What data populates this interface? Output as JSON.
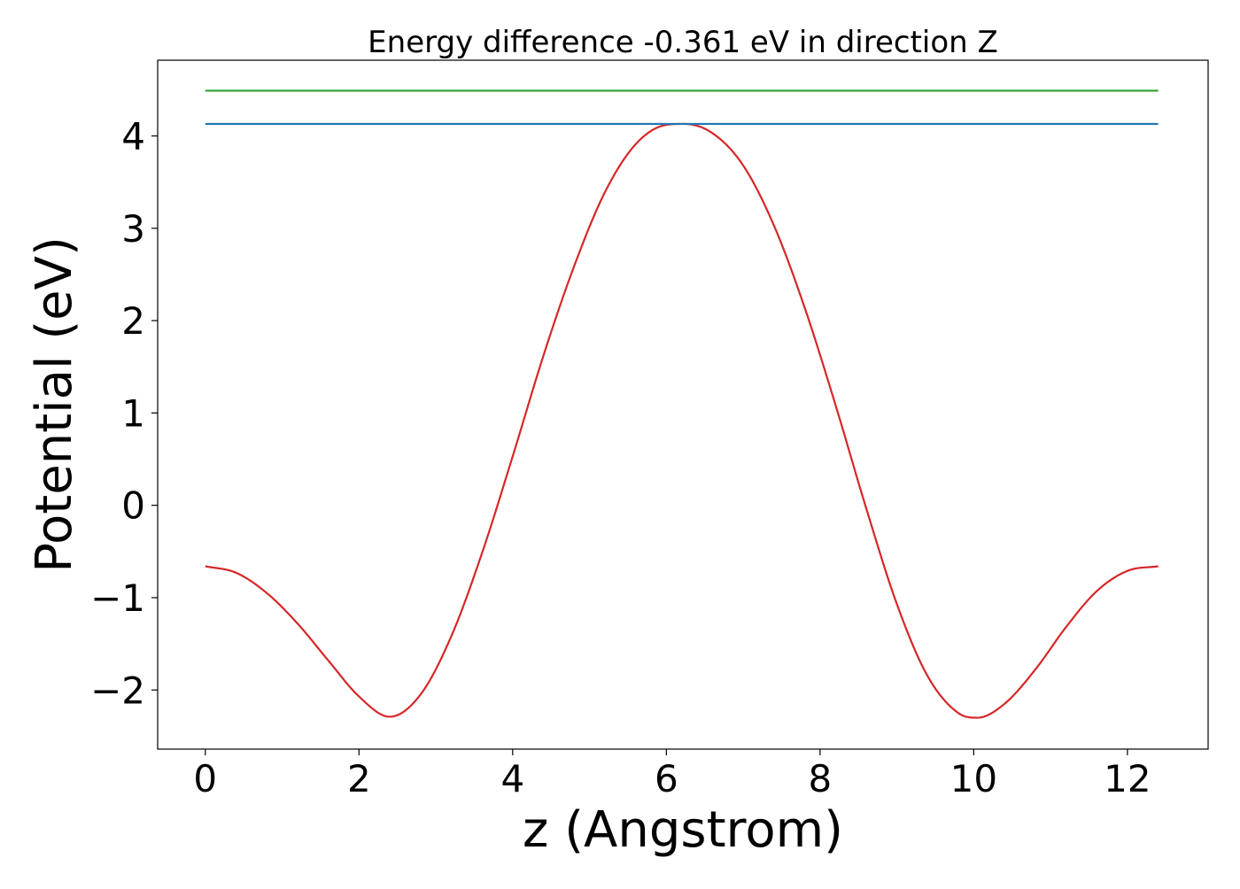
{
  "chart_data": {
    "type": "line",
    "title": "Energy difference -0.361 eV in direction Z",
    "xlabel": "z (Angstrom)",
    "ylabel": "Potential (eV)",
    "xlim": [
      -0.62,
      13.05
    ],
    "ylim": [
      -2.64,
      4.82
    ],
    "xticks": [
      0,
      2,
      4,
      6,
      8,
      10,
      12
    ],
    "xtick_labels": [
      "0",
      "2",
      "4",
      "6",
      "8",
      "10",
      "12"
    ],
    "yticks": [
      -2,
      -1,
      0,
      1,
      2,
      3,
      4
    ],
    "ytick_labels": [
      "−2",
      "−1",
      "0",
      "1",
      "2",
      "3",
      "4"
    ],
    "grid": false,
    "series": [
      {
        "color": "#d62728",
        "x": [
          0.0,
          0.4,
          0.8,
          1.2,
          1.6,
          2.0,
          2.4,
          2.8,
          3.2,
          3.6,
          4.0,
          4.4,
          4.8,
          5.2,
          5.6,
          6.0,
          6.23,
          6.6,
          7.0,
          7.4,
          7.8,
          8.2,
          8.6,
          9.0,
          9.4,
          9.8,
          10.05,
          10.4,
          10.8,
          11.2,
          11.6,
          12.0,
          12.4
        ],
        "y": [
          -0.66,
          -0.73,
          -0.95,
          -1.28,
          -1.68,
          -2.07,
          -2.29,
          -2.05,
          -1.42,
          -0.52,
          0.53,
          1.62,
          2.59,
          3.39,
          3.91,
          4.12,
          4.13,
          4.03,
          3.68,
          3.03,
          2.14,
          1.09,
          -0.03,
          -1.07,
          -1.85,
          -2.25,
          -2.3,
          -2.15,
          -1.78,
          -1.32,
          -0.93,
          -0.71,
          -0.66
        ]
      },
      {
        "color": "#1f77b4",
        "x": [
          0.0,
          12.4
        ],
        "y": [
          4.13,
          4.13
        ]
      },
      {
        "color": "#2ca02c",
        "x": [
          0.0,
          12.4
        ],
        "y": [
          4.49,
          4.49
        ]
      }
    ]
  }
}
